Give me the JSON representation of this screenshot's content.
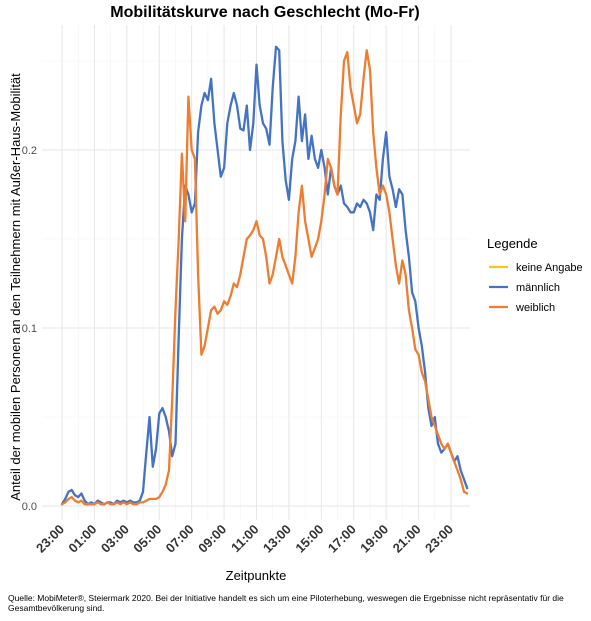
{
  "chart_data": {
    "type": "line",
    "title": "Mobilitätskurve nach Geschlecht (Mo-Fr)",
    "xlabel": "Zeitpunkte",
    "ylabel": "Anteil der mobilen Personen an den Teilnehmern mit Außer-Haus-Mobilität",
    "x_ticks": [
      "23:00",
      "01:00",
      "03:00",
      "05:00",
      "07:00",
      "09:00",
      "11:00",
      "13:00",
      "15:00",
      "17:00",
      "19:00",
      "21:00",
      "23:00"
    ],
    "x_range_hours": [
      23,
      47
    ],
    "y_ticks": [
      "0.0",
      "0.1",
      "0.2"
    ],
    "ylim": [
      0,
      0.26
    ],
    "grid": true,
    "legend": {
      "title": "Legende",
      "position": "right"
    },
    "series": [
      {
        "name": "keine Angabe",
        "color": "#F5C518",
        "points": []
      },
      {
        "name": "männlich",
        "color": "#4472C4",
        "points": [
          [
            23.0,
            0.001
          ],
          [
            23.2,
            0.004
          ],
          [
            23.4,
            0.008
          ],
          [
            23.6,
            0.009
          ],
          [
            23.8,
            0.006
          ],
          [
            24.0,
            0.005
          ],
          [
            24.2,
            0.007
          ],
          [
            24.4,
            0.003
          ],
          [
            24.6,
            0.001
          ],
          [
            24.8,
            0.002
          ],
          [
            25.0,
            0.001
          ],
          [
            25.2,
            0.003
          ],
          [
            25.4,
            0.002
          ],
          [
            25.6,
            0.001
          ],
          [
            25.8,
            0.002
          ],
          [
            26.0,
            0.002
          ],
          [
            26.2,
            0.001
          ],
          [
            26.4,
            0.003
          ],
          [
            26.6,
            0.002
          ],
          [
            26.8,
            0.003
          ],
          [
            27.0,
            0.002
          ],
          [
            27.2,
            0.003
          ],
          [
            27.4,
            0.002
          ],
          [
            27.6,
            0.002
          ],
          [
            27.8,
            0.003
          ],
          [
            28.0,
            0.008
          ],
          [
            28.2,
            0.03
          ],
          [
            28.4,
            0.05
          ],
          [
            28.6,
            0.022
          ],
          [
            28.8,
            0.032
          ],
          [
            29.0,
            0.052
          ],
          [
            29.2,
            0.055
          ],
          [
            29.4,
            0.05
          ],
          [
            29.6,
            0.042
          ],
          [
            29.8,
            0.028
          ],
          [
            30.0,
            0.035
          ],
          [
            30.2,
            0.095
          ],
          [
            30.4,
            0.15
          ],
          [
            30.6,
            0.18
          ],
          [
            30.8,
            0.175
          ],
          [
            31.0,
            0.165
          ],
          [
            31.2,
            0.17
          ],
          [
            31.4,
            0.21
          ],
          [
            31.6,
            0.225
          ],
          [
            31.8,
            0.232
          ],
          [
            32.0,
            0.228
          ],
          [
            32.2,
            0.24
          ],
          [
            32.4,
            0.215
          ],
          [
            32.6,
            0.2
          ],
          [
            32.8,
            0.185
          ],
          [
            33.0,
            0.19
          ],
          [
            33.2,
            0.215
          ],
          [
            33.4,
            0.225
          ],
          [
            33.6,
            0.232
          ],
          [
            33.8,
            0.225
          ],
          [
            34.0,
            0.212
          ],
          [
            34.2,
            0.211
          ],
          [
            34.4,
            0.225
          ],
          [
            34.6,
            0.2
          ],
          [
            34.8,
            0.215
          ],
          [
            35.0,
            0.248
          ],
          [
            35.2,
            0.225
          ],
          [
            35.4,
            0.215
          ],
          [
            35.6,
            0.212
          ],
          [
            35.8,
            0.203
          ],
          [
            36.0,
            0.235
          ],
          [
            36.2,
            0.258
          ],
          [
            36.4,
            0.256
          ],
          [
            36.6,
            0.205
          ],
          [
            36.8,
            0.183
          ],
          [
            37.0,
            0.172
          ],
          [
            37.2,
            0.195
          ],
          [
            37.4,
            0.205
          ],
          [
            37.6,
            0.23
          ],
          [
            37.8,
            0.205
          ],
          [
            38.0,
            0.22
          ],
          [
            38.2,
            0.195
          ],
          [
            38.4,
            0.208
          ],
          [
            38.6,
            0.195
          ],
          [
            38.8,
            0.19
          ],
          [
            39.0,
            0.2
          ],
          [
            39.2,
            0.19
          ],
          [
            39.4,
            0.175
          ],
          [
            39.6,
            0.19
          ],
          [
            39.8,
            0.18
          ],
          [
            40.0,
            0.175
          ],
          [
            40.2,
            0.18
          ],
          [
            40.4,
            0.17
          ],
          [
            40.6,
            0.168
          ],
          [
            40.8,
            0.165
          ],
          [
            41.0,
            0.165
          ],
          [
            41.2,
            0.17
          ],
          [
            41.4,
            0.168
          ],
          [
            41.6,
            0.172
          ],
          [
            41.8,
            0.17
          ],
          [
            42.0,
            0.165
          ],
          [
            42.2,
            0.155
          ],
          [
            42.4,
            0.175
          ],
          [
            42.6,
            0.172
          ],
          [
            42.8,
            0.195
          ],
          [
            43.0,
            0.21
          ],
          [
            43.2,
            0.185
          ],
          [
            43.4,
            0.178
          ],
          [
            43.6,
            0.168
          ],
          [
            43.8,
            0.178
          ],
          [
            44.0,
            0.175
          ],
          [
            44.2,
            0.155
          ],
          [
            44.4,
            0.14
          ],
          [
            44.6,
            0.12
          ],
          [
            44.8,
            0.115
          ],
          [
            45.0,
            0.1
          ],
          [
            45.2,
            0.09
          ],
          [
            45.4,
            0.075
          ],
          [
            45.6,
            0.055
          ],
          [
            45.8,
            0.045
          ],
          [
            46.0,
            0.05
          ],
          [
            46.2,
            0.035
          ],
          [
            46.4,
            0.03
          ],
          [
            46.6,
            0.032
          ],
          [
            46.8,
            0.035
          ],
          [
            47.0,
            0.03
          ],
          [
            47.2,
            0.025
          ],
          [
            47.4,
            0.028
          ],
          [
            47.6,
            0.02
          ],
          [
            47.8,
            0.015
          ],
          [
            48.0,
            0.01
          ]
        ]
      },
      {
        "name": "weiblich",
        "color": "#ED7D31",
        "points": [
          [
            23.0,
            0.001
          ],
          [
            23.2,
            0.002
          ],
          [
            23.4,
            0.004
          ],
          [
            23.6,
            0.005
          ],
          [
            23.8,
            0.003
          ],
          [
            24.0,
            0.002
          ],
          [
            24.2,
            0.003
          ],
          [
            24.4,
            0.001
          ],
          [
            24.6,
            0.001
          ],
          [
            24.8,
            0.001
          ],
          [
            25.0,
            0.001
          ],
          [
            25.2,
            0.002
          ],
          [
            25.4,
            0.001
          ],
          [
            25.6,
            0.001
          ],
          [
            25.8,
            0.002
          ],
          [
            26.0,
            0.001
          ],
          [
            26.2,
            0.001
          ],
          [
            26.4,
            0.002
          ],
          [
            26.6,
            0.001
          ],
          [
            26.8,
            0.002
          ],
          [
            27.0,
            0.001
          ],
          [
            27.2,
            0.002
          ],
          [
            27.4,
            0.001
          ],
          [
            27.6,
            0.001
          ],
          [
            27.8,
            0.002
          ],
          [
            28.0,
            0.002
          ],
          [
            28.2,
            0.003
          ],
          [
            28.4,
            0.004
          ],
          [
            28.6,
            0.004
          ],
          [
            28.8,
            0.004
          ],
          [
            29.0,
            0.005
          ],
          [
            29.2,
            0.008
          ],
          [
            29.4,
            0.012
          ],
          [
            29.6,
            0.02
          ],
          [
            29.8,
            0.06
          ],
          [
            30.0,
            0.11
          ],
          [
            30.2,
            0.15
          ],
          [
            30.4,
            0.198
          ],
          [
            30.6,
            0.16
          ],
          [
            30.8,
            0.23
          ],
          [
            31.0,
            0.2
          ],
          [
            31.2,
            0.195
          ],
          [
            31.4,
            0.13
          ],
          [
            31.6,
            0.085
          ],
          [
            31.8,
            0.09
          ],
          [
            32.0,
            0.1
          ],
          [
            32.2,
            0.11
          ],
          [
            32.4,
            0.112
          ],
          [
            32.6,
            0.108
          ],
          [
            32.8,
            0.11
          ],
          [
            33.0,
            0.115
          ],
          [
            33.2,
            0.113
          ],
          [
            33.4,
            0.118
          ],
          [
            33.6,
            0.125
          ],
          [
            33.8,
            0.123
          ],
          [
            34.0,
            0.13
          ],
          [
            34.2,
            0.14
          ],
          [
            34.4,
            0.15
          ],
          [
            34.6,
            0.152
          ],
          [
            34.8,
            0.155
          ],
          [
            35.0,
            0.16
          ],
          [
            35.2,
            0.152
          ],
          [
            35.4,
            0.15
          ],
          [
            35.6,
            0.14
          ],
          [
            35.8,
            0.125
          ],
          [
            36.0,
            0.13
          ],
          [
            36.2,
            0.14
          ],
          [
            36.4,
            0.15
          ],
          [
            36.6,
            0.14
          ],
          [
            36.8,
            0.135
          ],
          [
            37.0,
            0.13
          ],
          [
            37.2,
            0.125
          ],
          [
            37.4,
            0.14
          ],
          [
            37.6,
            0.165
          ],
          [
            37.8,
            0.18
          ],
          [
            38.0,
            0.16
          ],
          [
            38.2,
            0.15
          ],
          [
            38.4,
            0.14
          ],
          [
            38.6,
            0.145
          ],
          [
            38.8,
            0.15
          ],
          [
            39.0,
            0.16
          ],
          [
            39.2,
            0.175
          ],
          [
            39.4,
            0.195
          ],
          [
            39.6,
            0.19
          ],
          [
            39.8,
            0.18
          ],
          [
            40.0,
            0.175
          ],
          [
            40.2,
            0.22
          ],
          [
            40.4,
            0.25
          ],
          [
            40.6,
            0.255
          ],
          [
            40.8,
            0.235
          ],
          [
            41.0,
            0.225
          ],
          [
            41.2,
            0.215
          ],
          [
            41.4,
            0.22
          ],
          [
            41.6,
            0.24
          ],
          [
            41.8,
            0.256
          ],
          [
            42.0,
            0.245
          ],
          [
            42.2,
            0.21
          ],
          [
            42.4,
            0.19
          ],
          [
            42.6,
            0.175
          ],
          [
            42.8,
            0.18
          ],
          [
            43.0,
            0.175
          ],
          [
            43.2,
            0.165
          ],
          [
            43.4,
            0.15
          ],
          [
            43.6,
            0.135
          ],
          [
            43.8,
            0.125
          ],
          [
            44.0,
            0.138
          ],
          [
            44.2,
            0.13
          ],
          [
            44.4,
            0.11
          ],
          [
            44.6,
            0.1
          ],
          [
            44.8,
            0.088
          ],
          [
            45.0,
            0.085
          ],
          [
            45.2,
            0.075
          ],
          [
            45.4,
            0.07
          ],
          [
            45.6,
            0.06
          ],
          [
            45.8,
            0.05
          ],
          [
            46.0,
            0.045
          ],
          [
            46.2,
            0.04
          ],
          [
            46.4,
            0.035
          ],
          [
            46.6,
            0.032
          ],
          [
            46.8,
            0.035
          ],
          [
            47.0,
            0.03
          ],
          [
            47.2,
            0.025
          ],
          [
            47.4,
            0.02
          ],
          [
            47.6,
            0.015
          ],
          [
            47.8,
            0.008
          ],
          [
            48.0,
            0.007
          ]
        ]
      }
    ]
  },
  "caption": "Quelle: MobiMeter®, Steiermark 2020. Bei der Initiative handelt es sich um eine Piloterhebung, weswegen die Ergebnisse nicht repräsentativ für die Gesamtbevölkerung sind."
}
